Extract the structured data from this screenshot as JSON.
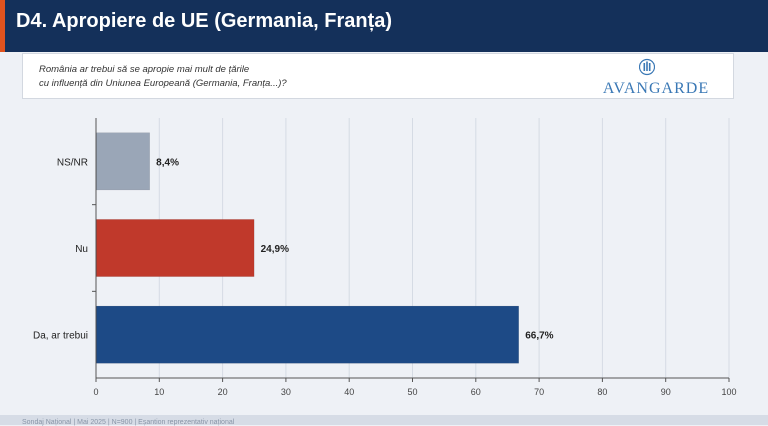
{
  "header": {
    "title": "D4. Apropiere de UE (Germania, Franța)"
  },
  "question": {
    "line1": "România ar trebui să se apropie mai mult de țările",
    "line2": "cu influență din Uniunea Europeană (Germania, Franța...)?"
  },
  "logo": {
    "name": "AVANGARDE",
    "icon": "avangarde-column-icon"
  },
  "footer": {
    "text": "Sondaj Național | Mai 2025 | N=900 | Eșantion reprezentativ național"
  },
  "chart_data": {
    "type": "bar",
    "orientation": "horizontal",
    "categories": [
      "NS/NR",
      "Nu",
      "Da, ar trebui"
    ],
    "values": [
      8.4,
      24.9,
      66.7
    ],
    "value_labels": [
      "8,4%",
      "24,9%",
      "66,7%"
    ],
    "colors": [
      "#9aa6b7",
      "#c0392b",
      "#1d4a86"
    ],
    "xlim": [
      0,
      100
    ],
    "xticks": [
      0,
      10,
      20,
      30,
      40,
      50,
      60,
      70,
      80,
      90,
      100
    ],
    "grid": true,
    "legend": false
  }
}
